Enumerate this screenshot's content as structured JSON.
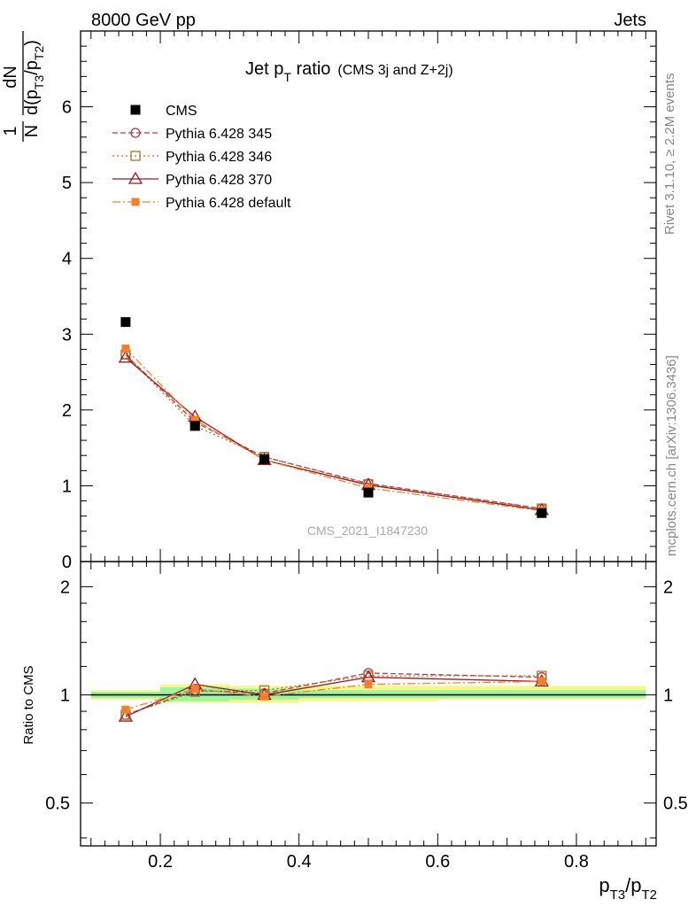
{
  "header": {
    "left": "8000 GeV pp",
    "right": "Jets"
  },
  "side": {
    "rivet": "Rivet 3.1.10, ≥ 2.2M events",
    "mcplots": "mcplots.cern.ch [arXiv:1306.3436]"
  },
  "watermark": "CMS_2021_I1847230",
  "title": {
    "main": "Jet p",
    "main_sub": "T",
    "main_rest": " ratio",
    "suffix": "(CMS 3j and Z+2j)"
  },
  "ylabel_top": {
    "numerator_one": "1",
    "denominator_N": "N",
    "dN": "dN",
    "d": "d(p",
    "sub1": "T3",
    "mid": "/p",
    "sub2": "T2",
    "close": ")"
  },
  "ylabel_bottom": "Ratio to CMS",
  "xlabel": {
    "p1": "p",
    "s1": "T3",
    "p2": "/p",
    "s2": "T2"
  },
  "chart_data": {
    "type": "line",
    "x": [
      0.15,
      0.25,
      0.35,
      0.5,
      0.75
    ],
    "xlim": [
      0.085,
      0.915
    ],
    "xticks": [
      0.2,
      0.4,
      0.6,
      0.8
    ],
    "xtick_labels": [
      "0.2",
      "0.4",
      "0.6",
      "0.8"
    ],
    "main": {
      "ylim": [
        0,
        7.0
      ],
      "yticks": [
        0,
        1,
        2,
        3,
        4,
        5,
        6
      ],
      "ytick_labels": [
        "0",
        "1",
        "2",
        "3",
        "4",
        "5",
        "6"
      ]
    },
    "ratio": {
      "ylim": [
        0.38,
        2.35
      ],
      "log": true,
      "yticks": [
        0.5,
        1,
        2
      ],
      "ytick_labels": [
        "0.5",
        "1",
        "2"
      ],
      "band_edges": [
        0.1,
        0.2,
        0.3,
        0.4,
        0.6,
        0.9
      ],
      "band_inner": [
        [
          0.98,
          1.02
        ],
        [
          0.96,
          1.05
        ],
        [
          0.97,
          1.04
        ],
        [
          0.98,
          1.03
        ],
        [
          0.98,
          1.03
        ]
      ],
      "band_outer": [
        [
          0.97,
          1.03
        ],
        [
          0.95,
          1.07
        ],
        [
          0.95,
          1.06
        ],
        [
          0.96,
          1.06
        ],
        [
          0.97,
          1.06
        ]
      ]
    },
    "data": {
      "name": "CMS",
      "values": [
        3.16,
        1.79,
        1.35,
        0.91,
        0.64
      ]
    },
    "series": [
      {
        "name": "Pythia 6.428 345",
        "color": "#b6384a",
        "marker": "circle",
        "dash": "6,3",
        "values": [
          2.73,
          1.84,
          1.38,
          1.03,
          0.7
        ],
        "ratio": [
          0.88,
          1.03,
          1.01,
          1.15,
          1.12
        ]
      },
      {
        "name": "Pythia 6.428 346",
        "color": "#a07a2a",
        "marker": "square-open",
        "dash": "2,3",
        "values": [
          2.73,
          1.79,
          1.38,
          1.02,
          0.7
        ],
        "ratio": [
          0.88,
          1.02,
          1.03,
          1.13,
          1.13
        ]
      },
      {
        "name": "Pythia 6.428 370",
        "color": "#9b1c24",
        "marker": "triangle",
        "dash": "",
        "values": [
          2.69,
          1.91,
          1.34,
          1.01,
          0.68
        ],
        "ratio": [
          0.87,
          1.07,
          1.0,
          1.12,
          1.09
        ]
      },
      {
        "name": "Pythia 6.428 default",
        "color": "#f28030",
        "marker": "square-filled",
        "dash": "9,3,2,3",
        "values": [
          2.81,
          1.87,
          1.34,
          0.97,
          0.67
        ],
        "ratio": [
          0.91,
          1.04,
          0.99,
          1.07,
          1.09
        ]
      }
    ]
  }
}
